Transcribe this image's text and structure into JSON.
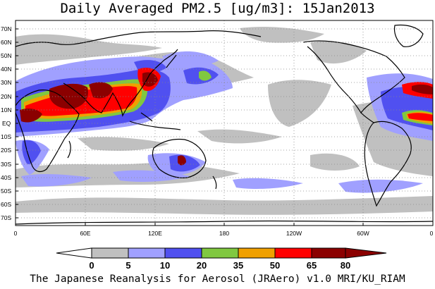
{
  "map": {
    "title": "Daily Averaged PM2.5 [ug/m3]: 15Jan2013",
    "footer": "The Japanese Reanalysis for Aerosol (JRAero) v1.0 MRI/KU_RIAM",
    "lat_labels": [
      "70N",
      "60N",
      "50N",
      "40N",
      "30N",
      "20N",
      "10N",
      "EQ",
      "10S",
      "20S",
      "30S",
      "40S",
      "50S",
      "60S",
      "70S"
    ],
    "lon_labels": [
      "0",
      "60E",
      "120E",
      "180",
      "120W",
      "60W",
      "0"
    ],
    "colors": {
      "white": "#ffffff",
      "gray": "#c0c0c0",
      "light_blue": "#a0a0ff",
      "blue": "#5050f0",
      "green": "#80c840",
      "orange": "#f0a000",
      "red": "#ff0000",
      "dark_red": "#8b0000",
      "land": "#000000"
    }
  },
  "colorbar": {
    "ticks": [
      "0",
      "5",
      "10",
      "20",
      "35",
      "50",
      "65",
      "80"
    ],
    "colors": [
      "#ffffff",
      "#c0c0c0",
      "#a0a0ff",
      "#5050f0",
      "#80c840",
      "#f0a000",
      "#ff0000",
      "#8b0000"
    ]
  }
}
